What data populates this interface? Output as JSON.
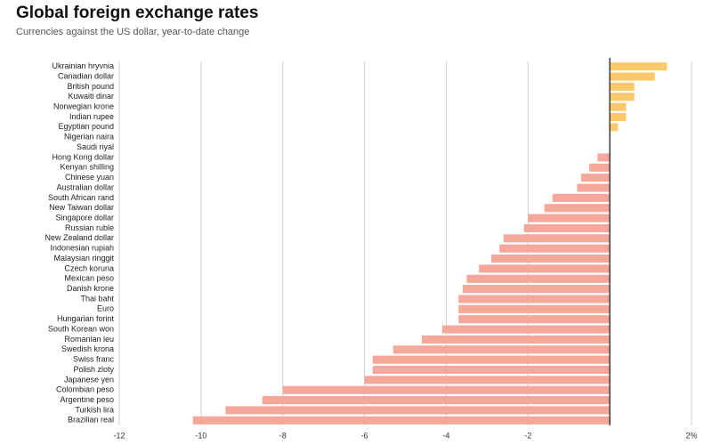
{
  "chart_data": {
    "type": "hbar",
    "title": "Global foreign exchange rates",
    "subtitle": "Currencies against the US dollar, year-to-date change",
    "categories": [
      "Ukrainian hryvnia",
      "Canadian dollar",
      "British pound",
      "Kuwaiti dinar",
      "Norwegian krone",
      "Indian rupee",
      "Egyptian pound",
      "Nigerian naira",
      "Saudi riyal",
      "Hong Kong dollar",
      "Kenyan shilling",
      "Chinese yuan",
      "Australian dollar",
      "South African rand",
      "New Taiwan dollar",
      "Singapore dollar",
      "Russian ruble",
      "New Zealand dollar",
      "Indonesian rupiah",
      "Malaysian ringgit",
      "Czech koruna",
      "Mexican peso",
      "Danish krone",
      "Thai baht",
      "Euro",
      "Hungarian forint",
      "South Korean won",
      "Romanian leu",
      "Swedish krona",
      "Swiss franc",
      "Polish zloty",
      "Japanese yen",
      "Colombian peso",
      "Argentine peso",
      "Turkish lira",
      "Brazilian real"
    ],
    "values": [
      1.4,
      1.1,
      0.6,
      0.6,
      0.4,
      0.4,
      0.2,
      0,
      0,
      -0.3,
      -0.5,
      -0.7,
      -0.8,
      -1.4,
      -1.6,
      -2.0,
      -2.1,
      -2.6,
      -2.7,
      -2.9,
      -3.2,
      -3.5,
      -3.6,
      -3.7,
      -3.7,
      -3.7,
      -4.1,
      -4.6,
      -5.3,
      -5.8,
      -5.8,
      -6.0,
      -8.0,
      -8.5,
      -9.4,
      -10.2
    ],
    "colors": {
      "positive": "#fbc96c",
      "negative": "#f5a899"
    },
    "xlim": [
      -12,
      2
    ],
    "xticks": [
      -12,
      -10,
      -8,
      -6,
      -4,
      -2,
      {
        "value": 2,
        "label": "2%"
      }
    ],
    "grid": true
  }
}
